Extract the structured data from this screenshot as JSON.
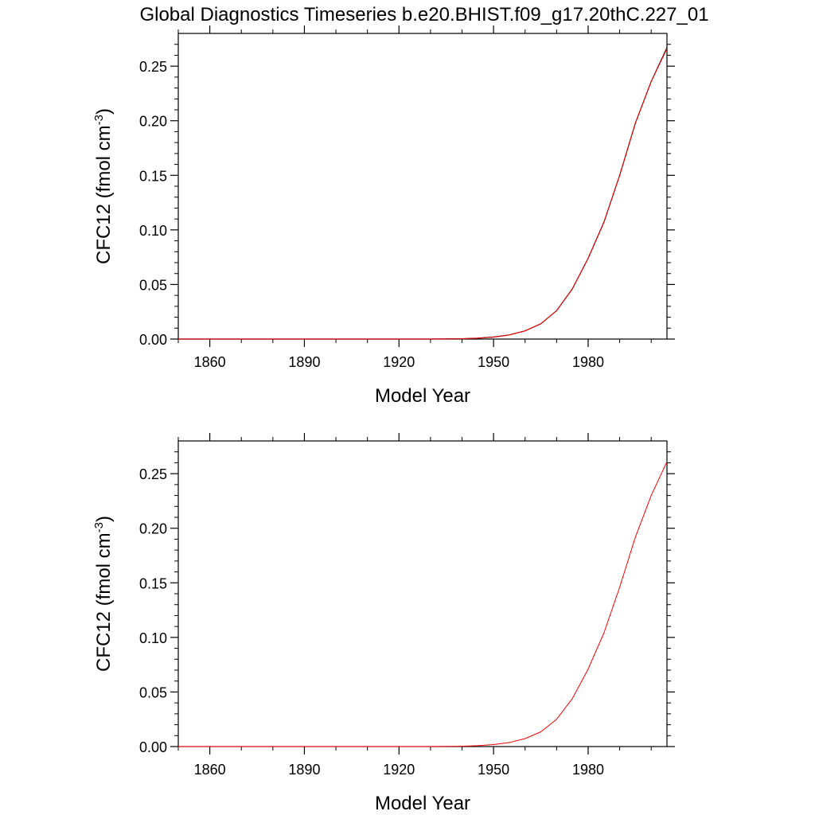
{
  "title": "Global Diagnostics Timeseries b.e20.BHIST.f09_g17.20thC.227_01",
  "chart_data": [
    {
      "type": "line",
      "xlabel": "Model Year",
      "ylabel_main": "CFC12 (fmol cm",
      "ylabel_sup": "-3",
      "ylabel_close": ")",
      "xlim": [
        1850,
        2005
      ],
      "ylim": [
        0,
        0.28
      ],
      "x_ticks": [
        1860,
        1890,
        1920,
        1950,
        1980
      ],
      "y_ticks": [
        "0.00",
        "0.05",
        "0.10",
        "0.15",
        "0.20",
        "0.25"
      ],
      "series": [
        {
          "color": "#000000",
          "x": [
            1850,
            1930,
            1940,
            1945,
            1950,
            1955,
            1960,
            1965,
            1970,
            1975,
            1980,
            1985,
            1990,
            1995,
            2000,
            2005
          ],
          "y": [
            0,
            0,
            0.0003,
            0.0008,
            0.0018,
            0.0038,
            0.0075,
            0.014,
            0.026,
            0.046,
            0.074,
            0.107,
            0.15,
            0.198,
            0.236,
            0.267
          ]
        },
        {
          "color": "#ff0000",
          "x": [
            1850,
            1930,
            1940,
            1945,
            1950,
            1955,
            1960,
            1965,
            1970,
            1975,
            1980,
            1985,
            1990,
            1995,
            2000,
            2005
          ],
          "y": [
            0,
            0,
            0.0003,
            0.0008,
            0.0018,
            0.0038,
            0.0075,
            0.014,
            0.026,
            0.046,
            0.074,
            0.107,
            0.15,
            0.198,
            0.236,
            0.266
          ]
        }
      ]
    },
    {
      "type": "line",
      "xlabel": "Model Year",
      "ylabel_main": "CFC12 (fmol cm",
      "ylabel_sup": "-3",
      "ylabel_close": ")",
      "xlim": [
        1850,
        2005
      ],
      "ylim": [
        0,
        0.28
      ],
      "x_ticks": [
        1860,
        1890,
        1920,
        1950,
        1980
      ],
      "y_ticks": [
        "0.00",
        "0.05",
        "0.10",
        "0.15",
        "0.20",
        "0.25"
      ],
      "series": [
        {
          "color": "#ff0000",
          "x": [
            1850,
            1930,
            1940,
            1945,
            1950,
            1955,
            1960,
            1965,
            1970,
            1975,
            1980,
            1985,
            1990,
            1995,
            2000,
            2005
          ],
          "y": [
            0,
            0,
            0.0003,
            0.0008,
            0.0018,
            0.0037,
            0.0073,
            0.0135,
            0.025,
            0.044,
            0.071,
            0.104,
            0.146,
            0.192,
            0.23,
            0.261
          ]
        }
      ]
    }
  ]
}
